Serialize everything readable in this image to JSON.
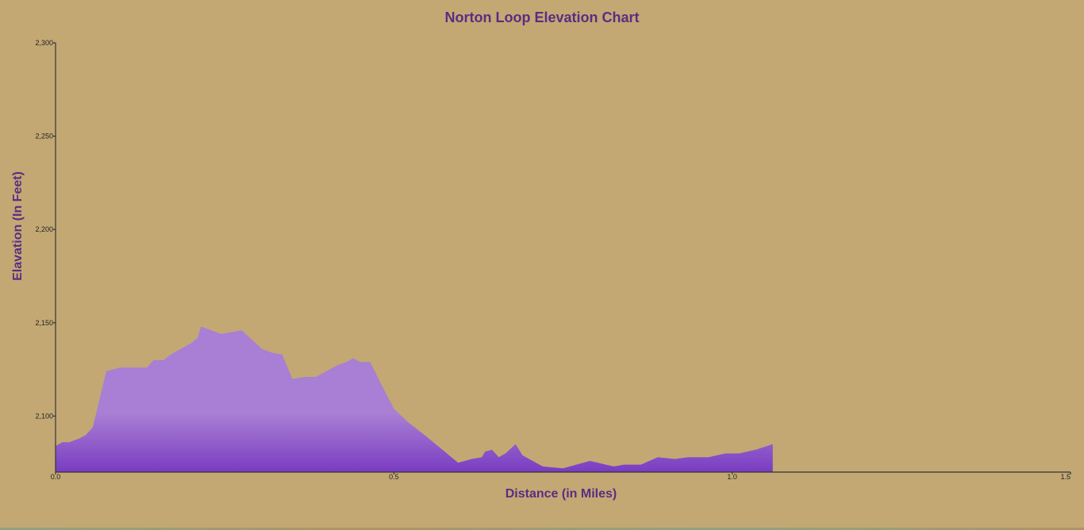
{
  "chart_data": {
    "type": "area",
    "title": "Norton Loop Elevation Chart",
    "xlabel": "Distance (in Miles)",
    "ylabel": "Elavation (In Feet)",
    "xlim": [
      0,
      1.5
    ],
    "ylim": [
      2070,
      2300
    ],
    "x_ticks": [
      "0.0",
      "0.5",
      "1.0",
      "1.5"
    ],
    "x_tick_values": [
      0,
      0.5,
      1.0,
      1.5
    ],
    "y_ticks": [
      "2,100",
      "2,150",
      "2,200",
      "2,250",
      "2,300"
    ],
    "y_tick_values": [
      2100,
      2150,
      2200,
      2250,
      2300
    ],
    "grid": false,
    "colors": {
      "background": "#c3a874",
      "fill_top": "#a87fd4",
      "fill_bottom": "#7a3cc2",
      "title": "#5a2d82",
      "axis": "#333333"
    },
    "series": [
      {
        "x": [
          0.0,
          0.01,
          0.02,
          0.035,
          0.045,
          0.055,
          0.075,
          0.095,
          0.115,
          0.135,
          0.145,
          0.16,
          0.17,
          0.185,
          0.2,
          0.21,
          0.215,
          0.23,
          0.245,
          0.26,
          0.275,
          0.29,
          0.305,
          0.32,
          0.335,
          0.35,
          0.37,
          0.385,
          0.4,
          0.415,
          0.43,
          0.44,
          0.45,
          0.465,
          0.48,
          0.5,
          0.52,
          0.545,
          0.565,
          0.595,
          0.615,
          0.63,
          0.635,
          0.645,
          0.655,
          0.665,
          0.68,
          0.69,
          0.72,
          0.75,
          0.79,
          0.825,
          0.84,
          0.865,
          0.89,
          0.915,
          0.935,
          0.965,
          0.99,
          1.01,
          1.035,
          1.06
        ],
        "y": [
          2084,
          2086,
          2086,
          2088,
          2090,
          2094,
          2124,
          2126,
          2126,
          2126,
          2130,
          2130,
          2133,
          2136,
          2139,
          2142,
          2148,
          2146,
          2144,
          2145,
          2146,
          2141,
          2136,
          2134,
          2133,
          2120,
          2121,
          2121,
          2124,
          2127,
          2129,
          2131,
          2129,
          2129,
          2118,
          2104,
          2097,
          2090,
          2084,
          2075,
          2077,
          2078,
          2081,
          2082,
          2078,
          2080,
          2085,
          2079,
          2073,
          2072,
          2076,
          2073,
          2074,
          2074,
          2078,
          2077,
          2078,
          2078,
          2080,
          2080,
          2082,
          2085
        ]
      }
    ]
  }
}
